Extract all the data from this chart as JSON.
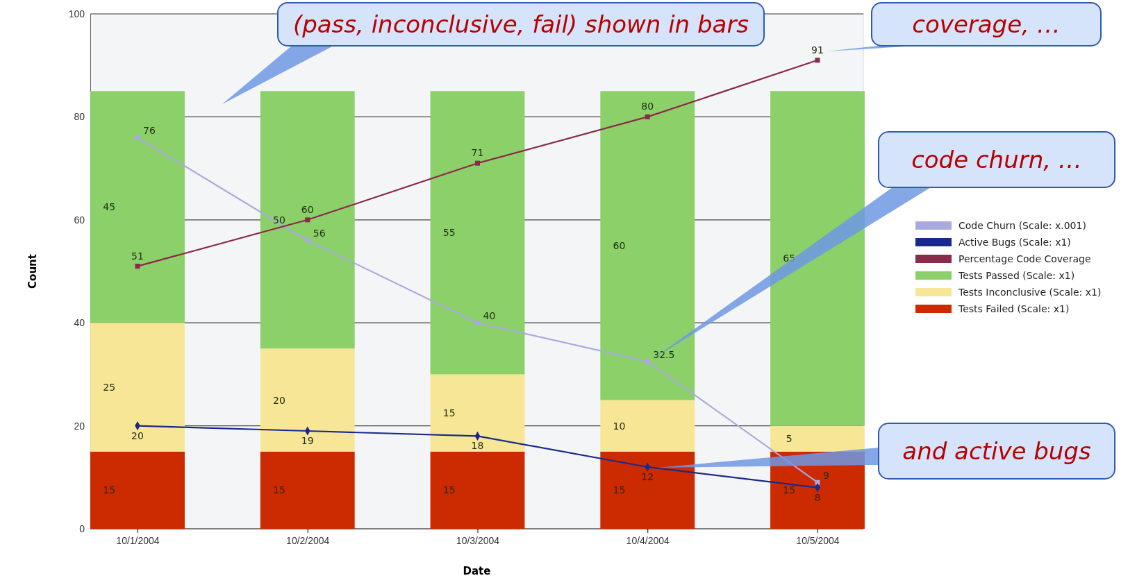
{
  "chart_data": {
    "type": "bar",
    "stacked": true,
    "xlabel": "Date",
    "ylabel": "Count",
    "categories": [
      "10/1/2004",
      "10/2/2004",
      "10/3/2004",
      "10/4/2004",
      "10/5/2004"
    ],
    "series": [
      {
        "name": "Tests Failed (Scale: x1)",
        "color": "#cc2a00",
        "values": [
          15,
          15,
          15,
          15,
          15
        ]
      },
      {
        "name": "Tests Inconclusive (Scale: x1)",
        "color": "#f7e696",
        "values": [
          25,
          20,
          15,
          10,
          5
        ]
      },
      {
        "name": "Tests Passed (Scale: x1)",
        "color": "#8cd06a",
        "values": [
          45,
          50,
          55,
          60,
          65
        ]
      },
      {
        "name": "Code Churn (Scale: x.001)",
        "type": "line",
        "color": "#a9a9e0",
        "marker": "square",
        "values": [
          76,
          56,
          40,
          32.5,
          9
        ]
      },
      {
        "name": "Active Bugs (Scale: x1)",
        "type": "line",
        "color": "#1a2a8c",
        "marker": "diamond",
        "values": [
          20,
          19,
          18,
          12,
          8
        ]
      },
      {
        "name": "Percentage Code Coverage",
        "type": "line",
        "color": "#8b2a4a",
        "marker": "square",
        "values": [
          51,
          60,
          71,
          80,
          91
        ]
      }
    ],
    "ylim": [
      0,
      100
    ],
    "yticks": [
      0,
      20,
      40,
      60,
      80,
      100
    ],
    "grid": "y",
    "legend": "right",
    "data_labels": true,
    "annotations": [
      "(pass, inconclusive, fail) shown in bars",
      "coverage, …",
      "code churn, …",
      "and active bugs"
    ]
  }
}
